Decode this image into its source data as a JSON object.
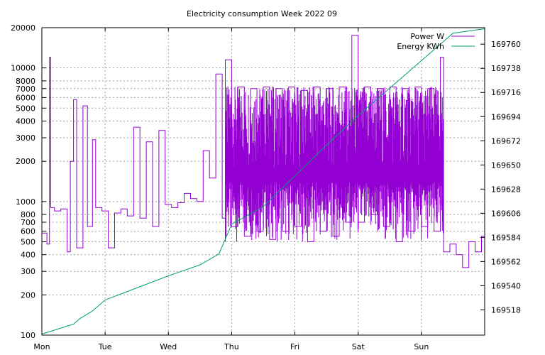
{
  "chart_data": {
    "type": "line",
    "title": "Electricity consumption Week 2022 09",
    "x_categories": [
      "Mon",
      "Tue",
      "Wed",
      "Thu",
      "Fri",
      "Sat",
      "Sun"
    ],
    "x_range_days": [
      0,
      7
    ],
    "y_left": {
      "scale": "log",
      "range": [
        100,
        20000
      ],
      "ticks": [
        100,
        200,
        300,
        400,
        500,
        600,
        700,
        800,
        1000,
        2000,
        3000,
        4000,
        5000,
        6000,
        7000,
        8000,
        10000,
        20000
      ]
    },
    "y_right": {
      "scale": "linear",
      "range": [
        169495,
        169775
      ],
      "ticks": [
        169518,
        169540,
        169562,
        169584,
        169606,
        169628,
        169650,
        169672,
        169694,
        169716,
        169738,
        169760
      ]
    },
    "grid": true,
    "legend_position": "top-right",
    "series": [
      {
        "name": "Power W",
        "axis": "left",
        "color": "#9400d3",
        "approx_points": [
          [
            0.0,
            580
          ],
          [
            0.08,
            480
          ],
          [
            0.12,
            12000
          ],
          [
            0.14,
            900
          ],
          [
            0.2,
            850
          ],
          [
            0.3,
            880
          ],
          [
            0.4,
            420
          ],
          [
            0.45,
            2000
          ],
          [
            0.5,
            5800
          ],
          [
            0.55,
            450
          ],
          [
            0.65,
            5200
          ],
          [
            0.72,
            650
          ],
          [
            0.8,
            2900
          ],
          [
            0.85,
            900
          ],
          [
            0.95,
            850
          ],
          [
            1.05,
            450
          ],
          [
            1.15,
            820
          ],
          [
            1.25,
            880
          ],
          [
            1.35,
            780
          ],
          [
            1.45,
            3600
          ],
          [
            1.55,
            750
          ],
          [
            1.65,
            2800
          ],
          [
            1.75,
            650
          ],
          [
            1.85,
            3400
          ],
          [
            1.95,
            950
          ],
          [
            2.05,
            900
          ],
          [
            2.15,
            980
          ],
          [
            2.25,
            1150
          ],
          [
            2.35,
            1050
          ],
          [
            2.45,
            1000
          ],
          [
            2.55,
            2400
          ],
          [
            2.65,
            1500
          ],
          [
            2.75,
            9000
          ],
          [
            2.85,
            750
          ],
          [
            2.9,
            11500
          ],
          [
            3.0,
            650
          ],
          [
            3.1,
            7200
          ],
          [
            3.2,
            550
          ],
          [
            3.3,
            7000
          ],
          [
            3.4,
            600
          ],
          [
            3.5,
            7200
          ],
          [
            3.6,
            520
          ],
          [
            3.7,
            7000
          ],
          [
            3.8,
            600
          ],
          [
            3.9,
            7200
          ],
          [
            4.0,
            650
          ],
          [
            4.1,
            6800
          ],
          [
            4.2,
            500
          ],
          [
            4.3,
            7200
          ],
          [
            4.4,
            600
          ],
          [
            4.5,
            7000
          ],
          [
            4.6,
            550
          ],
          [
            4.7,
            7200
          ],
          [
            4.8,
            700
          ],
          [
            4.9,
            17500
          ],
          [
            5.0,
            700
          ],
          [
            5.1,
            7200
          ],
          [
            5.2,
            800
          ],
          [
            5.3,
            7000
          ],
          [
            5.4,
            650
          ],
          [
            5.5,
            7200
          ],
          [
            5.6,
            500
          ],
          [
            5.7,
            7000
          ],
          [
            5.8,
            600
          ],
          [
            5.9,
            7200
          ],
          [
            6.0,
            650
          ],
          [
            6.1,
            7000
          ],
          [
            6.2,
            600
          ],
          [
            6.3,
            12000
          ],
          [
            6.35,
            420
          ],
          [
            6.45,
            480
          ],
          [
            6.55,
            400
          ],
          [
            6.65,
            320
          ],
          [
            6.75,
            500
          ],
          [
            6.85,
            420
          ],
          [
            6.95,
            550
          ],
          [
            7.0,
            600
          ]
        ]
      },
      {
        "name": "Energy KWh",
        "axis": "right",
        "color": "#009e73",
        "approx_points": [
          [
            0.0,
            169496
          ],
          [
            0.5,
            169505
          ],
          [
            0.6,
            169510
          ],
          [
            0.8,
            169517
          ],
          [
            1.0,
            169527
          ],
          [
            1.5,
            169538
          ],
          [
            2.0,
            169549
          ],
          [
            2.5,
            169559
          ],
          [
            2.8,
            169569
          ],
          [
            3.0,
            169596
          ],
          [
            3.5,
            169612
          ],
          [
            4.0,
            169640
          ],
          [
            4.5,
            169668
          ],
          [
            5.0,
            169695
          ],
          [
            5.5,
            169720
          ],
          [
            6.0,
            169745
          ],
          [
            6.5,
            169770
          ],
          [
            7.0,
            169774
          ]
        ]
      }
    ]
  }
}
